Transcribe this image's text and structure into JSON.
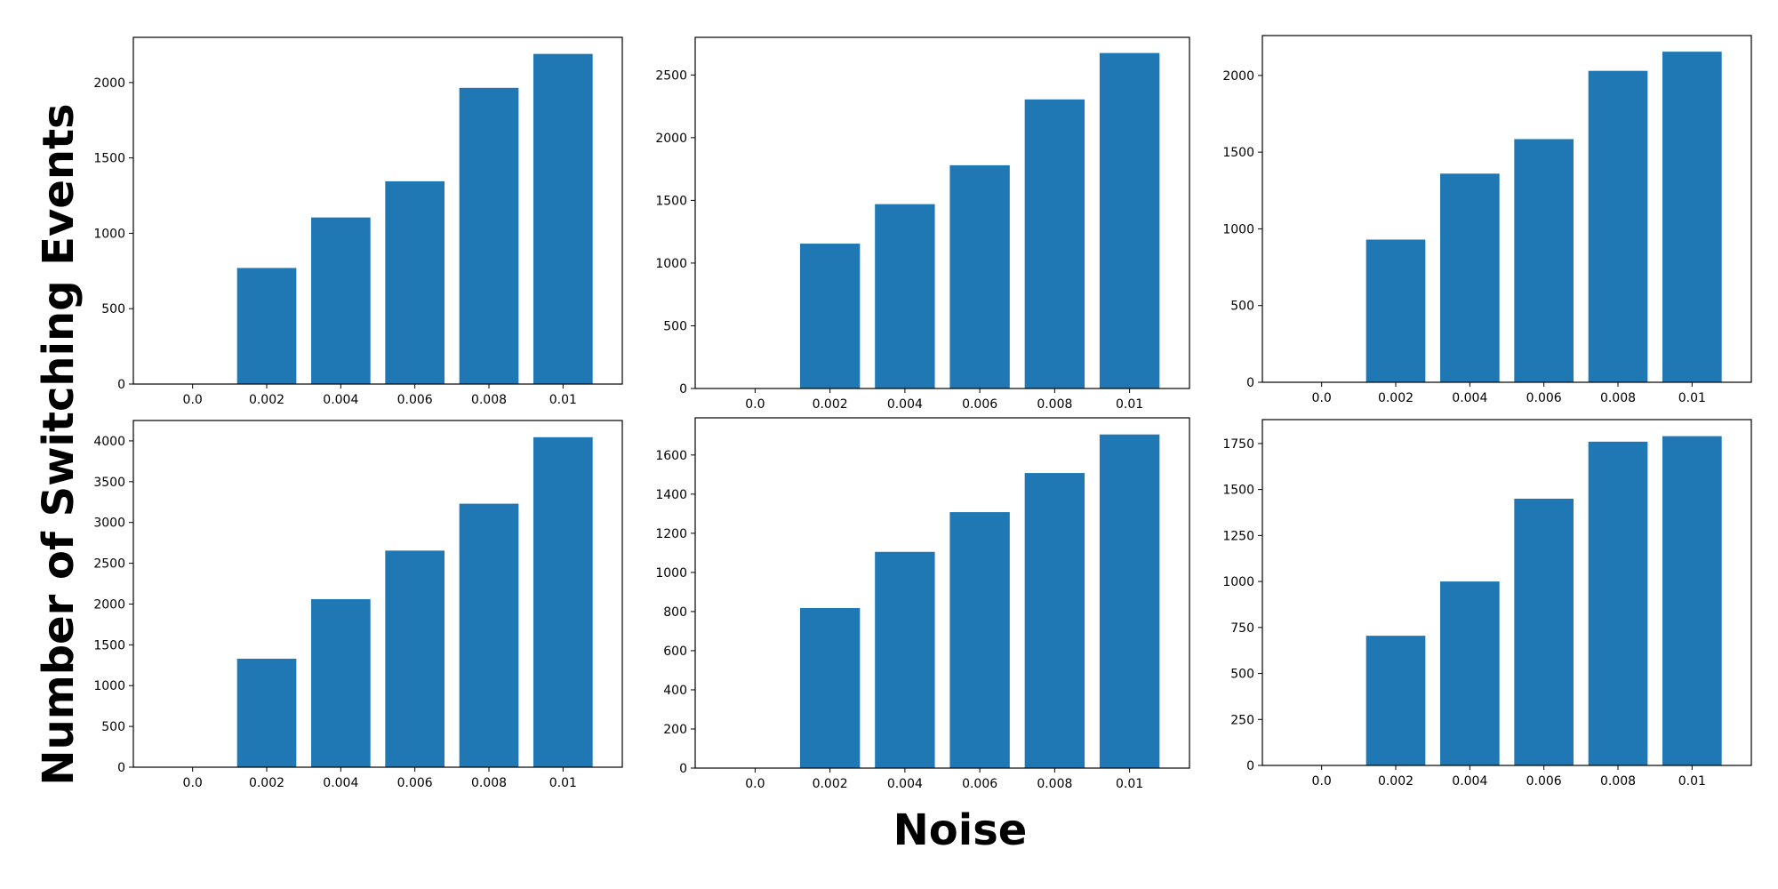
{
  "figure": {
    "xlabel": "Noise",
    "ylabel": "Number of Switching Events",
    "bar_color": "#1f77b4"
  },
  "chart_data": [
    {
      "type": "bar",
      "categories": [
        "0.0",
        "0.002",
        "0.004",
        "0.006",
        "0.008",
        "0.01"
      ],
      "values": [
        0,
        770,
        1105,
        1345,
        1965,
        2190
      ],
      "ylim": [
        0,
        2300
      ],
      "yticks": [
        0,
        500,
        1000,
        1500,
        2000
      ]
    },
    {
      "type": "bar",
      "categories": [
        "0.0",
        "0.002",
        "0.004",
        "0.006",
        "0.008",
        "0.01"
      ],
      "values": [
        0,
        1155,
        1470,
        1780,
        2305,
        2675
      ],
      "ylim": [
        0,
        2800
      ],
      "yticks": [
        0,
        500,
        1000,
        1500,
        2000,
        2500
      ]
    },
    {
      "type": "bar",
      "categories": [
        "0.0",
        "0.002",
        "0.004",
        "0.006",
        "0.008",
        "0.01"
      ],
      "values": [
        0,
        930,
        1360,
        1585,
        2030,
        2155
      ],
      "ylim": [
        0,
        2260
      ],
      "yticks": [
        0,
        500,
        1000,
        1500,
        2000
      ]
    },
    {
      "type": "bar",
      "categories": [
        "0.0",
        "0.002",
        "0.004",
        "0.006",
        "0.008",
        "0.01"
      ],
      "values": [
        0,
        1330,
        2060,
        2655,
        3230,
        4045
      ],
      "ylim": [
        0,
        4250
      ],
      "yticks": [
        0,
        500,
        1000,
        1500,
        2000,
        2500,
        3000,
        3500,
        4000
      ]
    },
    {
      "type": "bar",
      "categories": [
        "0.0",
        "0.002",
        "0.004",
        "0.006",
        "0.008",
        "0.01"
      ],
      "values": [
        0,
        818,
        1105,
        1308,
        1508,
        1705
      ],
      "ylim": [
        0,
        1790
      ],
      "yticks": [
        0,
        200,
        400,
        600,
        800,
        1000,
        1200,
        1400,
        1600
      ]
    },
    {
      "type": "bar",
      "categories": [
        "0.0",
        "0.002",
        "0.004",
        "0.006",
        "0.008",
        "0.01"
      ],
      "values": [
        0,
        705,
        1000,
        1450,
        1760,
        1790
      ],
      "ylim": [
        0,
        1880
      ],
      "yticks": [
        0,
        250,
        500,
        750,
        1000,
        1250,
        1500,
        1750
      ]
    }
  ]
}
